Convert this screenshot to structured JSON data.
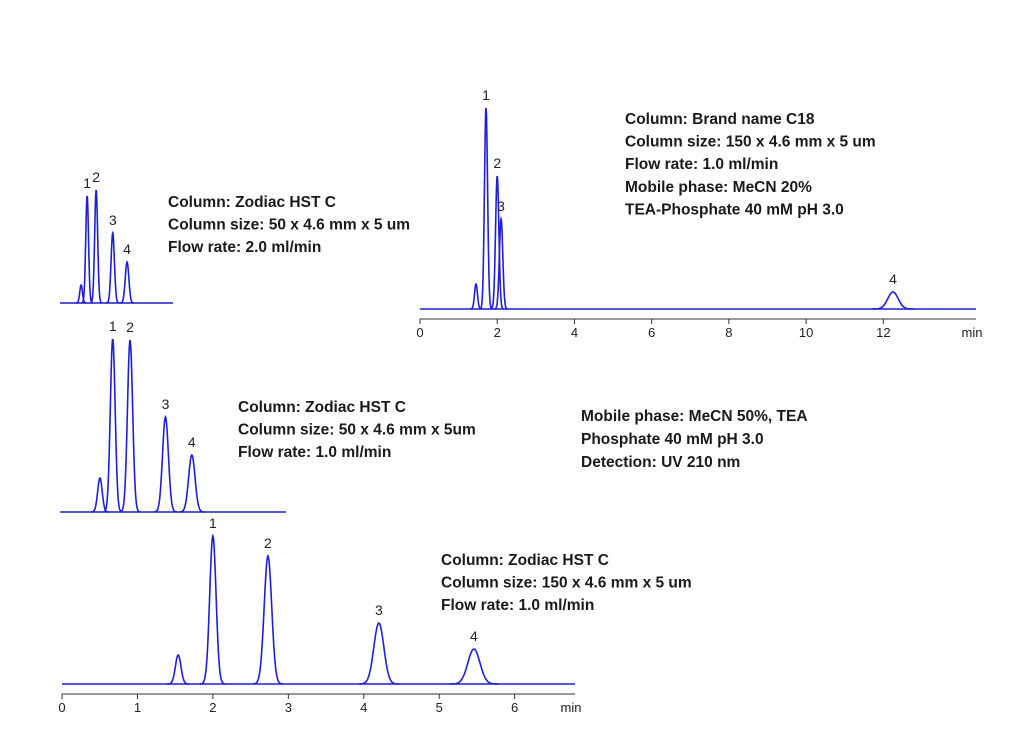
{
  "chart_data": [
    {
      "type": "line",
      "color": "#1f1fd6",
      "x": [
        0.28,
        0.36,
        0.48,
        0.7,
        0.89
      ],
      "values": [
        18,
        107,
        113,
        70,
        41
      ],
      "labels": [
        null,
        "1",
        "2",
        "3",
        "4"
      ],
      "xlim": [
        0,
        1.5
      ],
      "ylim": [
        0,
        210
      ],
      "annotations": [
        "Column: Zodiac HST C",
        "Column size: 50 x 4.6 mm x 5 um",
        "Flow rate: 2.0 ml/min"
      ]
    },
    {
      "type": "line",
      "color": "#1f1fd6",
      "x": [
        0.53,
        0.7,
        0.93,
        1.4,
        1.75
      ],
      "values": [
        34,
        173,
        172,
        95,
        57
      ],
      "labels": [
        null,
        "1",
        "2",
        "3",
        "4"
      ],
      "xlim": [
        0,
        3
      ],
      "ylim": [
        0,
        210
      ],
      "annotations": [
        "Column: Zodiac HST C",
        "Column size: 50 x 4.6 mm x 5um",
        "Flow rate: 1.0 ml/min"
      ]
    },
    {
      "type": "line",
      "color": "#1f1fd6",
      "x": [
        1.54,
        2.0,
        2.73,
        4.2,
        5.46
      ],
      "values": [
        29,
        148,
        128,
        61,
        35
      ],
      "labels": [
        null,
        "1",
        "2",
        "3",
        "4"
      ],
      "xlim": [
        0,
        6.8
      ],
      "ylim": [
        0,
        210
      ],
      "xticks": [
        0,
        1,
        2,
        3,
        4,
        5,
        6
      ],
      "x_label": "min",
      "annotations": [
        "Column: Zodiac HST C",
        "Column size: 150 x 4.6 mm x 5 um",
        "Flow rate: 1.0 ml/min"
      ]
    },
    {
      "type": "line",
      "color": "#1f1fd6",
      "x": [
        1.45,
        1.71,
        2.0,
        2.1,
        12.25
      ],
      "values": [
        25,
        201,
        133,
        90,
        17
      ],
      "labels": [
        null,
        "1",
        "2",
        "3",
        "4"
      ],
      "xlim": [
        0,
        14.4
      ],
      "ylim": [
        0,
        210
      ],
      "xticks": [
        0,
        2,
        4,
        6,
        8,
        10,
        12
      ],
      "x_label": "min",
      "annotations": [
        "Column: Brand name C18",
        "Column size: 150 x 4.6 mm x 5 um",
        "Flow rate: 1.0 ml/min",
        "Mobile phase: MeCN 20%",
        "TEA-Phosphate 40 mM pH 3.0"
      ]
    }
  ],
  "annotation": [
    "Mobile phase: MeCN 50%, TEA",
    "Phosphate 40 mM pH 3.0",
    "Detection: UV 210 nm"
  ]
}
